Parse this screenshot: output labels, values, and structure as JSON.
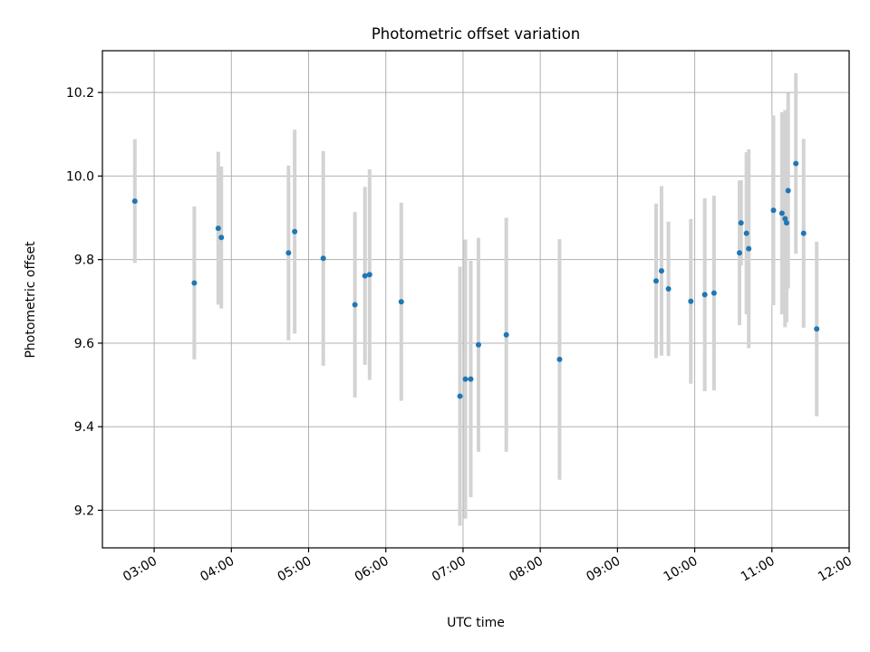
{
  "chart_data": {
    "type": "scatter",
    "title": "Photometric offset variation",
    "xlabel": "UTC time",
    "ylabel": "Photometric offset",
    "x_unit": "hours UTC",
    "xlim": [
      2.33,
      12.0
    ],
    "ylim": [
      9.11,
      10.3
    ],
    "x_ticks": [
      {
        "value": 3,
        "label": "03:00"
      },
      {
        "value": 4,
        "label": "04:00"
      },
      {
        "value": 5,
        "label": "05:00"
      },
      {
        "value": 6,
        "label": "06:00"
      },
      {
        "value": 7,
        "label": "07:00"
      },
      {
        "value": 8,
        "label": "08:00"
      },
      {
        "value": 9,
        "label": "09:00"
      },
      {
        "value": 10,
        "label": "10:00"
      },
      {
        "value": 11,
        "label": "11:00"
      },
      {
        "value": 12,
        "label": "12:00"
      }
    ],
    "y_ticks": [
      {
        "value": 9.2,
        "label": "9.2"
      },
      {
        "value": 9.4,
        "label": "9.4"
      },
      {
        "value": 9.6,
        "label": "9.6"
      },
      {
        "value": 9.8,
        "label": "9.8"
      },
      {
        "value": 10.0,
        "label": "10.0"
      },
      {
        "value": 10.2,
        "label": "10.2"
      }
    ],
    "grid": true,
    "marker_color": "#1f77b4",
    "errorbar_color": "#d3d3d3",
    "points": [
      {
        "x": 2.75,
        "y": 9.94,
        "err": 0.148
      },
      {
        "x": 3.52,
        "y": 9.744,
        "err": 0.183
      },
      {
        "x": 3.83,
        "y": 9.875,
        "err": 0.183
      },
      {
        "x": 3.87,
        "y": 9.853,
        "err": 0.17
      },
      {
        "x": 4.74,
        "y": 9.816,
        "err": 0.209
      },
      {
        "x": 4.82,
        "y": 9.867,
        "err": 0.244
      },
      {
        "x": 5.19,
        "y": 9.803,
        "err": 0.257
      },
      {
        "x": 5.6,
        "y": 9.692,
        "err": 0.222
      },
      {
        "x": 5.73,
        "y": 9.761,
        "err": 0.213
      },
      {
        "x": 5.79,
        "y": 9.764,
        "err": 0.252
      },
      {
        "x": 6.2,
        "y": 9.699,
        "err": 0.237
      },
      {
        "x": 6.96,
        "y": 9.473,
        "err": 0.31
      },
      {
        "x": 7.03,
        "y": 9.514,
        "err": 0.334
      },
      {
        "x": 7.1,
        "y": 9.514,
        "err": 0.283
      },
      {
        "x": 7.2,
        "y": 9.596,
        "err": 0.256
      },
      {
        "x": 7.56,
        "y": 9.62,
        "err": 0.28
      },
      {
        "x": 8.25,
        "y": 9.561,
        "err": 0.288
      },
      {
        "x": 9.5,
        "y": 9.749,
        "err": 0.185
      },
      {
        "x": 9.57,
        "y": 9.773,
        "err": 0.203
      },
      {
        "x": 9.66,
        "y": 9.73,
        "err": 0.161
      },
      {
        "x": 9.95,
        "y": 9.7,
        "err": 0.197
      },
      {
        "x": 10.13,
        "y": 9.716,
        "err": 0.231
      },
      {
        "x": 10.25,
        "y": 9.72,
        "err": 0.233
      },
      {
        "x": 10.58,
        "y": 9.816,
        "err": 0.173
      },
      {
        "x": 10.6,
        "y": 9.888,
        "err": 0.102
      },
      {
        "x": 10.67,
        "y": 9.863,
        "err": 0.194
      },
      {
        "x": 10.7,
        "y": 9.826,
        "err": 0.238
      },
      {
        "x": 11.02,
        "y": 9.918,
        "err": 0.227
      },
      {
        "x": 11.13,
        "y": 9.911,
        "err": 0.242
      },
      {
        "x": 11.17,
        "y": 9.898,
        "err": 0.26
      },
      {
        "x": 11.19,
        "y": 9.888,
        "err": 0.238
      },
      {
        "x": 11.21,
        "y": 9.965,
        "err": 0.234
      },
      {
        "x": 11.31,
        "y": 10.03,
        "err": 0.216
      },
      {
        "x": 11.41,
        "y": 9.863,
        "err": 0.226
      },
      {
        "x": 11.58,
        "y": 9.634,
        "err": 0.209
      }
    ]
  }
}
